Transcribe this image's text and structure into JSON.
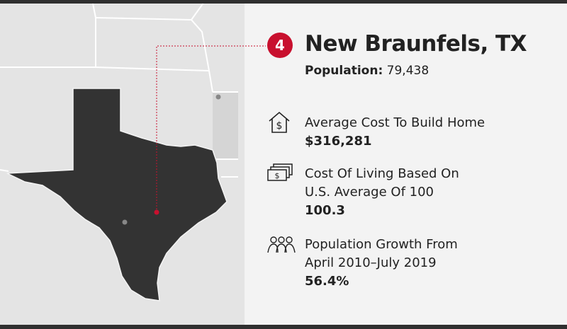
{
  "rank": "4",
  "title": "New Braunfels, TX",
  "population": {
    "label": "Population:",
    "value": "79,438"
  },
  "stats": [
    {
      "label": [
        "Average Cost To Build Home"
      ],
      "value": "$316,281"
    },
    {
      "label": [
        "Cost Of Living Based On",
        "U.S. Average Of 100"
      ],
      "value": "100.3"
    },
    {
      "label": [
        "Population Growth From",
        "April 2010–July 2019"
      ],
      "value": "56.4%"
    }
  ]
}
